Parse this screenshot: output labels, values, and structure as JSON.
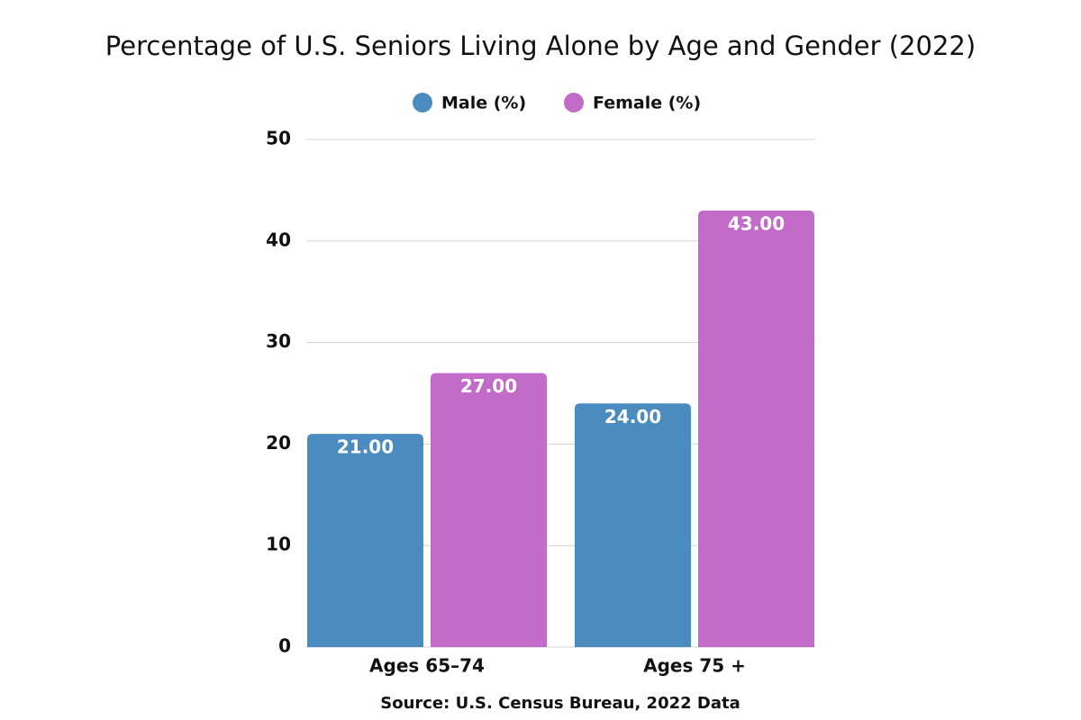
{
  "chart_data": {
    "type": "bar",
    "title": "Percentage of U.S. Seniors Living Alone by Age and Gender (2022)",
    "categories": [
      "Ages 65–74",
      "Ages 75 +"
    ],
    "series": [
      {
        "name": "Male (%)",
        "color": "#4a8bc0",
        "values": [
          21,
          24
        ],
        "value_labels": [
          "21.00",
          "24.00"
        ]
      },
      {
        "name": "Female (%)",
        "color": "#c36bc8",
        "values": [
          27,
          43
        ],
        "value_labels": [
          "27.00",
          "43.00"
        ]
      }
    ],
    "ylim": [
      0,
      50
    ],
    "yticks": [
      0,
      10,
      20,
      30,
      40,
      50
    ],
    "grid": true,
    "legend": "top",
    "source": "Source: U.S. Census Bureau, 2022 Data"
  }
}
